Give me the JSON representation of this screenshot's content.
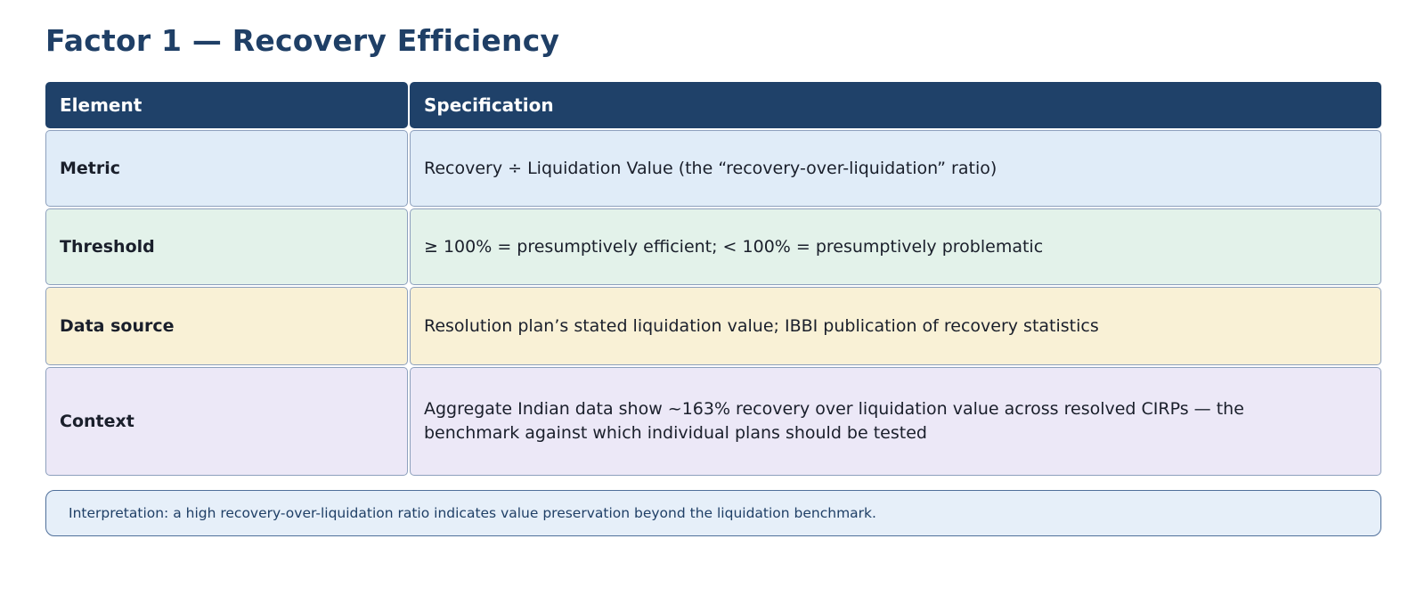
{
  "title": "Factor 1 — Recovery Efficiency",
  "table": {
    "headers": [
      "Element",
      "Specification"
    ],
    "rows": [
      {
        "element": "Metric",
        "specification": "Recovery ÷ Liquidation Value (the “recovery-over-liquidation” ratio)",
        "color": "#e0ecf8"
      },
      {
        "element": "Threshold",
        "specification": "≥ 100% = presumptively efficient; < 100% = presumptively problematic",
        "color": "#e3f2ea"
      },
      {
        "element": "Data source",
        "specification": "Resolution plan’s stated liquidation value; IBBI publication of recovery statistics",
        "color": "#f9f1d6"
      },
      {
        "element": "Context",
        "specification": "Aggregate Indian data show ~163% recovery over liquidation value across resolved CIRPs — the benchmark against which individual plans should be tested",
        "color": "#ece8f7"
      }
    ]
  },
  "note": "Interpretation: a high recovery-over-liquidation ratio indicates value preservation beyond the liquidation benchmark.",
  "colors": {
    "title": "#1f3f66",
    "header_bg": "#1f4169",
    "note_bg": "#e6eff9",
    "note_border": "#4f6f9a"
  }
}
